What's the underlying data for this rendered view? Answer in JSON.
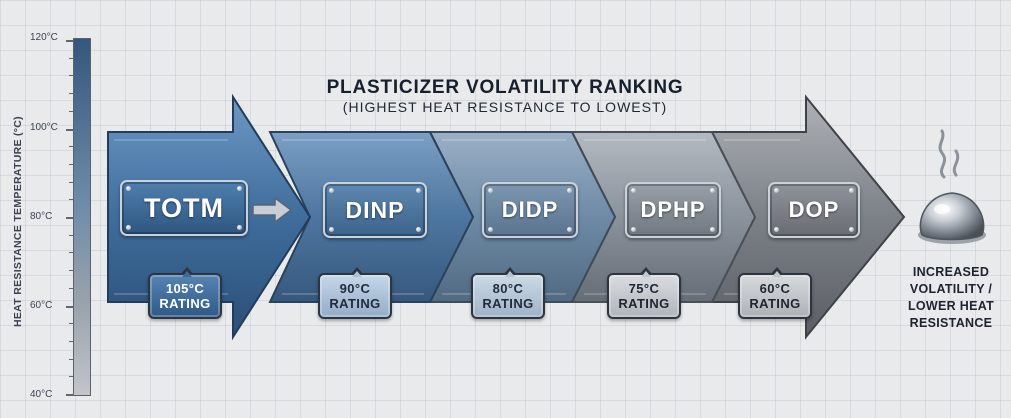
{
  "title": "PLASTICIZER VOLATILITY RANKING",
  "subtitle": "(HIGHEST HEAT RESISTANCE TO LOWEST)",
  "scale": {
    "axis_title": "HEAT RESISTANCE TEMPERATURE (°C)",
    "labels": [
      "120°C",
      "100°C",
      "80°C",
      "60°C",
      "40°C"
    ]
  },
  "stages": [
    {
      "name": "TOTM",
      "rating_temp": "105°C",
      "rating_word": "RATING",
      "color": "#3f6d9c"
    },
    {
      "name": "DINP",
      "rating_temp": "90°C",
      "rating_word": "RATING",
      "color": "#4d76a0"
    },
    {
      "name": "DIDP",
      "rating_temp": "80°C",
      "rating_word": "RATING",
      "color": "#6e8aa5"
    },
    {
      "name": "DPHP",
      "rating_temp": "75°C",
      "rating_word": "RATING",
      "color": "#8a929c"
    },
    {
      "name": "DOP",
      "rating_temp": "60°C",
      "rating_word": "RATING",
      "color": "#7c8187"
    }
  ],
  "end_note": {
    "lines": [
      "INCREASED",
      "VOLATILITY /",
      "LOWER HEAT",
      "RESISTANCE"
    ]
  },
  "icons": {
    "arrow": "right-arrow-icon",
    "droplet": "melting-droplet-icon",
    "steam": "steam-icon"
  }
}
